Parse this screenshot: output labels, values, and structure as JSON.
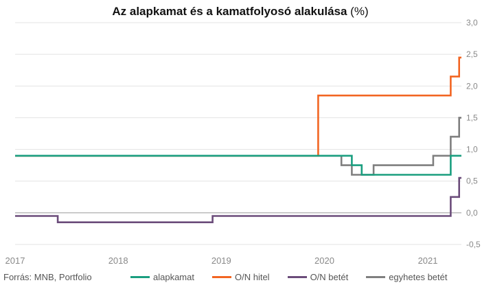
{
  "title": "Az alapkamat és a kamatfolyosó alakulása",
  "title_unit": "(%)",
  "source": "Forrás: MNB, Portfolio",
  "chart_data": {
    "type": "line",
    "step": true,
    "title": "Az alapkamat és a kamatfolyosó alakulása (%)",
    "xlabel": "",
    "ylabel": "",
    "xlim": [
      "2017-01-01",
      "2021-04-30"
    ],
    "ylim": [
      -0.5,
      3.0
    ],
    "x_ticks": [
      "2017",
      "2018",
      "2019",
      "2020",
      "2021"
    ],
    "y_ticks": [
      "3,0",
      "2,5",
      "2,0",
      "1,5",
      "1,0",
      "0,5",
      "0,0",
      "-0,5"
    ],
    "y_tick_values": [
      3.0,
      2.5,
      2.0,
      1.5,
      1.0,
      0.5,
      0.0,
      -0.5
    ],
    "grid": "horizontal",
    "y_axis_position": "right",
    "legend_position": "bottom",
    "series": [
      {
        "name": "alapkamat",
        "color": "#1a9e7f",
        "points": [
          [
            "2017-01-01",
            0.9
          ],
          [
            "2020-04-07",
            0.9
          ],
          [
            "2020-04-07",
            0.75
          ],
          [
            "2020-05-12",
            0.75
          ],
          [
            "2020-05-12",
            0.6
          ],
          [
            "2021-03-23",
            0.6
          ],
          [
            "2021-03-23",
            0.9
          ],
          [
            "2021-04-30",
            0.9
          ]
        ]
      },
      {
        "name": "O/N hitel",
        "color": "#f26522",
        "points": [
          [
            "2017-01-01",
            0.9
          ],
          [
            "2019-12-10",
            0.9
          ],
          [
            "2019-12-10",
            1.85
          ],
          [
            "2021-03-23",
            1.85
          ],
          [
            "2021-03-23",
            2.15
          ],
          [
            "2021-04-22",
            2.15
          ],
          [
            "2021-04-22",
            2.45
          ],
          [
            "2021-04-30",
            2.45
          ]
        ]
      },
      {
        "name": "O/N betét",
        "color": "#6b4c7a",
        "points": [
          [
            "2017-01-01",
            -0.05
          ],
          [
            "2017-06-01",
            -0.05
          ],
          [
            "2017-06-01",
            -0.15
          ],
          [
            "2018-12-01",
            -0.15
          ],
          [
            "2018-12-01",
            -0.05
          ],
          [
            "2021-03-23",
            -0.05
          ],
          [
            "2021-03-23",
            0.25
          ],
          [
            "2021-04-22",
            0.25
          ],
          [
            "2021-04-22",
            0.55
          ],
          [
            "2021-04-30",
            0.55
          ]
        ]
      },
      {
        "name": "egyhetes betét",
        "color": "#7f7f7f",
        "points": [
          [
            "2017-01-01",
            0.9
          ],
          [
            "2020-03-01",
            0.9
          ],
          [
            "2020-03-01",
            0.75
          ],
          [
            "2020-04-07",
            0.75
          ],
          [
            "2020-04-07",
            0.6
          ],
          [
            "2020-06-23",
            0.6
          ],
          [
            "2020-06-23",
            0.75
          ],
          [
            "2021-01-20",
            0.75
          ],
          [
            "2021-01-20",
            0.9
          ],
          [
            "2021-03-23",
            0.9
          ],
          [
            "2021-03-23",
            1.2
          ],
          [
            "2021-04-22",
            1.2
          ],
          [
            "2021-04-22",
            1.5
          ],
          [
            "2021-04-30",
            1.5
          ]
        ]
      }
    ]
  }
}
